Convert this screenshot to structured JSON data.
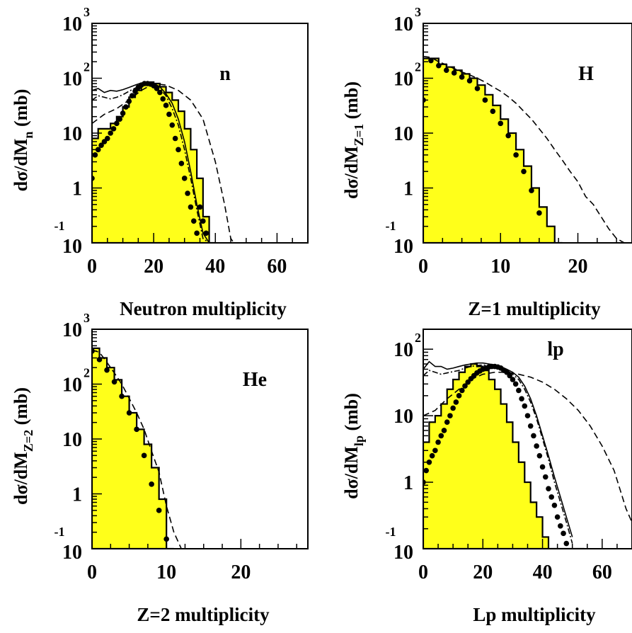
{
  "colors": {
    "histogram_fill": "#ffff1a",
    "line": "#000000"
  },
  "chart_data": [
    {
      "type": "line",
      "panel": "n",
      "label": "n",
      "xlabel": "Neutron multiplicity",
      "ylabel": {
        "main": "dσ/dM",
        "sub": "n",
        "unit": "(mb)"
      },
      "xlim": [
        0,
        70
      ],
      "ylim": [
        0.1,
        1000
      ],
      "yscale": "log",
      "xticks": [
        {
          "v": 0,
          "t": "0"
        },
        {
          "v": 20,
          "t": "20"
        },
        {
          "v": 40,
          "t": "40"
        },
        {
          "v": 60,
          "t": "60"
        }
      ],
      "yticks": [
        {
          "v": 0.1,
          "t": "10",
          "e": "-1"
        },
        {
          "v": 1,
          "t": "1",
          "e": ""
        },
        {
          "v": 10,
          "t": "10",
          "e": ""
        },
        {
          "v": 100,
          "t": "10",
          "e": "2"
        },
        {
          "v": 1000,
          "t": "10",
          "e": "3"
        }
      ],
      "histogram": {
        "x_start": 0,
        "bin_width": 2,
        "values": [
          8,
          12,
          12,
          15,
          20,
          30,
          45,
          60,
          75,
          85,
          80,
          70,
          55,
          40,
          25,
          12,
          5,
          1.5,
          0.3,
          0.1
        ]
      },
      "points": {
        "x": [
          0,
          1,
          2,
          3,
          4,
          5,
          6,
          7,
          8,
          9,
          10,
          11,
          12,
          13,
          14,
          15,
          16,
          17,
          18,
          19,
          20,
          21,
          22,
          23,
          24,
          25,
          26,
          27,
          28,
          29,
          30,
          31,
          32,
          33,
          34,
          35,
          36,
          37
        ],
        "y": [
          1.5,
          4,
          5,
          6,
          7,
          8,
          10,
          12,
          15,
          18,
          23,
          30,
          38,
          48,
          58,
          68,
          75,
          80,
          80,
          78,
          73,
          65,
          55,
          42,
          32,
          22,
          14,
          8,
          5,
          2.8,
          1.5,
          0.8,
          0.45,
          0.25,
          0.15,
          0.45,
          0.25,
          0.15
        ]
      },
      "curves": [
        {
          "style": "solid",
          "x": [
            0,
            2,
            4,
            6,
            8,
            10,
            12,
            14,
            16,
            18,
            20,
            22,
            24,
            26,
            28,
            30,
            32,
            34,
            36,
            38,
            40
          ],
          "y": [
            60,
            65,
            55,
            60,
            58,
            62,
            68,
            75,
            82,
            85,
            80,
            70,
            52,
            35,
            18,
            7,
            2,
            0.5,
            0.15,
            0.1,
            0.1
          ]
        },
        {
          "style": "dashdot",
          "x": [
            0,
            2,
            4,
            6,
            8,
            10,
            12,
            14,
            16,
            18,
            20,
            22,
            24,
            26,
            28,
            30,
            32,
            34,
            36,
            38
          ],
          "y": [
            40,
            48,
            45,
            42,
            45,
            50,
            58,
            66,
            75,
            80,
            77,
            65,
            48,
            28,
            14,
            5,
            1.5,
            0.4,
            0.12,
            0.1
          ]
        },
        {
          "style": "dashed",
          "x": [
            0,
            4,
            8,
            12,
            16,
            20,
            24,
            28,
            32,
            36,
            40,
            43,
            45,
            46
          ],
          "y": [
            15,
            22,
            28,
            40,
            60,
            80,
            75,
            60,
            40,
            18,
            3,
            0.5,
            0.12,
            0.1
          ]
        }
      ]
    },
    {
      "type": "line",
      "panel": "H",
      "label": "H",
      "xlabel": "Z=1 multiplicity",
      "ylabel": {
        "main": "dσ/dM",
        "sub": "Z=1",
        "unit": "(mb)"
      },
      "xlim": [
        0,
        27
      ],
      "ylim": [
        0.1,
        1000
      ],
      "yscale": "log",
      "xticks": [
        {
          "v": 0,
          "t": "0"
        },
        {
          "v": 10,
          "t": "10"
        },
        {
          "v": 20,
          "t": "20"
        }
      ],
      "yticks": [
        {
          "v": 0.1,
          "t": "10",
          "e": "-1"
        },
        {
          "v": 1,
          "t": "1",
          "e": ""
        },
        {
          "v": 10,
          "t": "10",
          "e": ""
        },
        {
          "v": 100,
          "t": "10",
          "e": "2"
        },
        {
          "v": 1000,
          "t": "10",
          "e": "3"
        }
      ],
      "histogram": {
        "x_start": 0,
        "bin_width": 1,
        "values": [
          230,
          230,
          180,
          160,
          140,
          120,
          100,
          75,
          50,
          32,
          18,
          10,
          5,
          2.5,
          1,
          0.45,
          0.2,
          0.1
        ]
      },
      "points": {
        "x": [
          0,
          1,
          2,
          3,
          4,
          5,
          6,
          7,
          8,
          9,
          10,
          11,
          12,
          13,
          14,
          15
        ],
        "y": [
          40,
          210,
          170,
          140,
          125,
          105,
          90,
          65,
          40,
          25,
          15,
          9,
          4,
          2,
          0.9,
          0.35
        ]
      },
      "curves": [
        {
          "style": "dashed",
          "x": [
            0,
            1,
            2,
            3,
            4,
            5,
            6,
            7,
            8,
            9,
            10,
            11,
            12,
            13,
            14,
            15,
            16,
            17,
            18,
            19,
            20,
            21,
            22,
            23,
            24,
            25,
            26,
            27
          ],
          "y": [
            250,
            240,
            200,
            175,
            150,
            130,
            115,
            100,
            85,
            70,
            58,
            46,
            35,
            25,
            18,
            12,
            8,
            5,
            3.2,
            2,
            1.3,
            0.7,
            0.5,
            0.3,
            0.18,
            0.12,
            0.1,
            0.1
          ]
        }
      ]
    },
    {
      "type": "line",
      "panel": "He",
      "label": "He",
      "xlabel": "Z=2 multiplicity",
      "ylabel": {
        "main": "dσ/dM",
        "sub": "Z=2",
        "unit": "(mb)"
      },
      "xlim": [
        0,
        29
      ],
      "ylim": [
        0.1,
        1000
      ],
      "yscale": "log",
      "xticks": [
        {
          "v": 0,
          "t": "0"
        },
        {
          "v": 10,
          "t": "10"
        },
        {
          "v": 20,
          "t": "20"
        }
      ],
      "yticks": [
        {
          "v": 0.1,
          "t": "10",
          "e": "-1"
        },
        {
          "v": 1,
          "t": "1",
          "e": ""
        },
        {
          "v": 10,
          "t": "10",
          "e": ""
        },
        {
          "v": 100,
          "t": "10",
          "e": "2"
        },
        {
          "v": 1000,
          "t": "10",
          "e": "3"
        }
      ],
      "histogram": {
        "x_start": 0,
        "bin_width": 1,
        "values": [
          450,
          300,
          200,
          120,
          60,
          30,
          15,
          8,
          3,
          0.8,
          0.1
        ]
      },
      "points": {
        "x": [
          0,
          1,
          2,
          3,
          4,
          5,
          6,
          7,
          8,
          9,
          10
        ],
        "y": [
          400,
          280,
          180,
          110,
          60,
          30,
          15,
          5,
          1.5,
          0.5,
          0.15
        ]
      },
      "curves": [
        {
          "style": "dashed",
          "x": [
            0,
            1,
            2,
            3,
            4,
            5,
            6,
            7,
            8,
            9,
            10,
            11,
            12,
            13
          ],
          "y": [
            420,
            380,
            250,
            160,
            100,
            55,
            30,
            15,
            6,
            2.5,
            0.6,
            0.2,
            0.1,
            0.1
          ]
        }
      ]
    },
    {
      "type": "line",
      "panel": "lp",
      "label": "lp",
      "xlabel": "Lp multiplicity",
      "ylabel": {
        "main": "dσ/dM",
        "sub": "lp",
        "unit": "(mb)"
      },
      "xlim": [
        0,
        70
      ],
      "ylim": [
        0.1,
        200
      ],
      "yscale": "log",
      "xticks": [
        {
          "v": 0,
          "t": "0"
        },
        {
          "v": 20,
          "t": "20"
        },
        {
          "v": 40,
          "t": "40"
        },
        {
          "v": 60,
          "t": "60"
        }
      ],
      "yticks": [
        {
          "v": 0.1,
          "t": "10",
          "e": "-1"
        },
        {
          "v": 1,
          "t": "1",
          "e": ""
        },
        {
          "v": 10,
          "t": "10",
          "e": ""
        },
        {
          "v": 100,
          "t": "10",
          "e": "2"
        }
      ],
      "histogram": {
        "x_start": 0,
        "bin_width": 2,
        "values": [
          4,
          8,
          10,
          15,
          25,
          35,
          45,
          55,
          60,
          55,
          48,
          35,
          25,
          15,
          8,
          4,
          2,
          1,
          0.5,
          0.3,
          0.15,
          0.1,
          0.1,
          0.1,
          0.1,
          0.1,
          0.1
        ]
      },
      "points": {
        "x": [
          0,
          1,
          2,
          3,
          4,
          5,
          6,
          7,
          8,
          9,
          10,
          11,
          12,
          13,
          14,
          15,
          16,
          17,
          18,
          19,
          20,
          21,
          22,
          23,
          24,
          25,
          26,
          27,
          28,
          29,
          30,
          31,
          32,
          33,
          34,
          35,
          36,
          37,
          38,
          39,
          40,
          41,
          42,
          43,
          44,
          45,
          46,
          47,
          48
        ],
        "y": [
          1,
          1.5,
          2,
          2.5,
          3,
          4,
          5,
          6,
          8,
          10,
          13,
          16,
          20,
          24,
          28,
          32,
          36,
          40,
          44,
          47,
          50,
          52,
          54,
          55,
          55,
          54,
          52,
          48,
          45,
          40,
          35,
          30,
          24,
          18,
          14,
          10,
          7,
          5,
          3.5,
          2.5,
          1.7,
          1.2,
          0.8,
          0.6,
          0.45,
          0.3,
          0.22,
          0.17,
          0.12
        ]
      },
      "curves": [
        {
          "style": "solid",
          "x": [
            0,
            2,
            4,
            6,
            8,
            10,
            12,
            14,
            16,
            18,
            20,
            22,
            24,
            26,
            28,
            30,
            32,
            34,
            36,
            38,
            40,
            42,
            44,
            46,
            48,
            50
          ],
          "y": [
            50,
            65,
            55,
            55,
            50,
            52,
            55,
            58,
            60,
            62,
            62,
            60,
            58,
            55,
            50,
            45,
            38,
            28,
            18,
            10,
            5,
            2.5,
            1.2,
            0.6,
            0.3,
            0.15
          ]
        },
        {
          "style": "dashdot",
          "x": [
            0,
            2,
            4,
            6,
            8,
            10,
            12,
            14,
            16,
            18,
            20,
            22,
            24,
            26,
            28,
            30,
            32,
            34,
            36,
            38,
            40,
            42,
            44,
            46,
            48,
            50
          ],
          "y": [
            40,
            48,
            45,
            42,
            44,
            46,
            48,
            52,
            55,
            57,
            58,
            57,
            55,
            52,
            48,
            42,
            35,
            25,
            16,
            9,
            4.5,
            2.2,
            1,
            0.5,
            0.25,
            0.12
          ]
        },
        {
          "style": "dashed",
          "x": [
            0,
            4,
            8,
            12,
            16,
            20,
            24,
            28,
            32,
            36,
            40,
            44,
            48,
            52,
            56,
            60,
            64,
            68,
            70
          ],
          "y": [
            10,
            12,
            18,
            25,
            35,
            42,
            45,
            45,
            42,
            38,
            32,
            25,
            18,
            12,
            7,
            3.5,
            1.5,
            0.4,
            0.25
          ]
        }
      ]
    }
  ]
}
